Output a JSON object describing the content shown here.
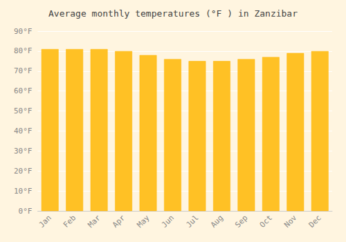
{
  "chart_data": {
    "type": "bar",
    "title": "Average monthly temperatures (°F ) in Zanzibar",
    "categories": [
      "Jan",
      "Feb",
      "Mar",
      "Apr",
      "May",
      "Jun",
      "Jul",
      "Aug",
      "Sep",
      "Oct",
      "Nov",
      "Dec"
    ],
    "values": [
      81,
      81,
      81,
      80,
      78,
      76,
      75,
      75,
      76,
      77,
      79,
      80
    ],
    "color": "#FFC125",
    "ylim": [
      0,
      90
    ],
    "yticks": [
      {
        "value": 0,
        "label": "0°F"
      },
      {
        "value": 10,
        "label": "10°F"
      },
      {
        "value": 20,
        "label": "20°F"
      },
      {
        "value": 30,
        "label": "30°F"
      },
      {
        "value": 40,
        "label": "40°F"
      },
      {
        "value": 50,
        "label": "50°F"
      },
      {
        "value": 60,
        "label": "60°F"
      },
      {
        "value": 70,
        "label": "70°F"
      },
      {
        "value": 80,
        "label": "80°F"
      },
      {
        "value": 90,
        "label": "90°F"
      }
    ],
    "grid": true
  }
}
